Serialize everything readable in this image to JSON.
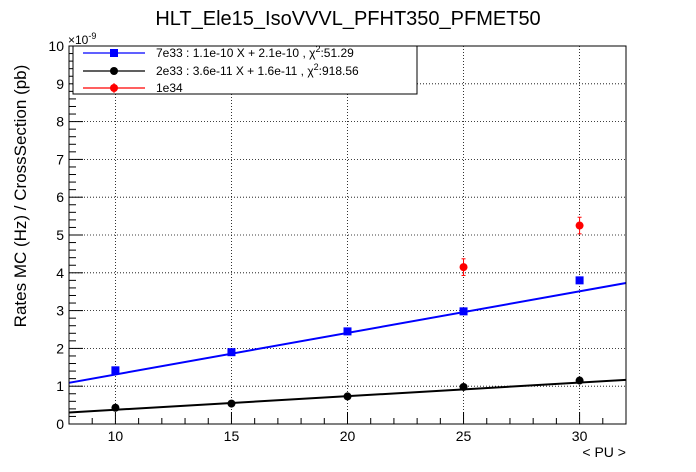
{
  "chart_data": {
    "type": "scatter",
    "title": "HLT_Ele15_IsoVVVL_PFHT350_PFMET50",
    "xlabel": "< PU >",
    "ylabel": "Rates MC (Hz) / CrossSection (pb)",
    "y_exponent_label": "×10",
    "y_exponent_power": "-9",
    "xlim": [
      8,
      32
    ],
    "ylim": [
      0,
      10
    ],
    "x_ticks": [
      10,
      15,
      20,
      25,
      30
    ],
    "y_ticks": [
      0,
      1,
      2,
      3,
      4,
      5,
      6,
      7,
      8,
      9,
      10
    ],
    "grid": true,
    "legend_position": "top-left",
    "series": [
      {
        "name": "7e33",
        "legend_label": "7e33 : 1.1e-10 X + 2.1e-10 , ",
        "chi2_symbol": "χ",
        "chi2_power": "2",
        "chi2_value": ":51.29",
        "color": "#0000ff",
        "marker": "square",
        "x": [
          10,
          15,
          20,
          25,
          30
        ],
        "y": [
          1.42,
          1.9,
          2.45,
          2.98,
          3.8
        ],
        "err": [
          0.04,
          0.04,
          0.05,
          0.05,
          0.06
        ],
        "fit": {
          "slope": 0.11,
          "intercept": 0.21
        }
      },
      {
        "name": "2e33",
        "legend_label": "2e33 : 3.6e-11 X + 1.6e-11 , ",
        "chi2_symbol": "χ",
        "chi2_power": "2",
        "chi2_value": ":918.56",
        "color": "#000000",
        "marker": "circle",
        "x": [
          10,
          15,
          20,
          25,
          30
        ],
        "y": [
          0.43,
          0.54,
          0.73,
          0.98,
          1.15
        ],
        "err": [
          0.02,
          0.02,
          0.03,
          0.03,
          0.03
        ],
        "fit": {
          "slope": 0.036,
          "intercept": 0.016
        }
      },
      {
        "name": "1e34",
        "legend_label": "1e34",
        "color": "#ff0000",
        "marker": "circle",
        "x": [
          25,
          30
        ],
        "y": [
          4.15,
          5.25
        ],
        "err": [
          0.22,
          0.22
        ]
      }
    ]
  }
}
